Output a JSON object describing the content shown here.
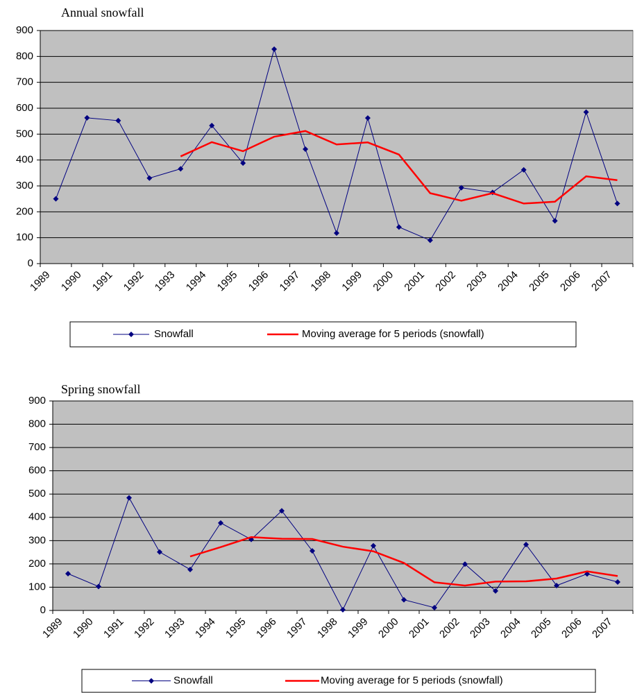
{
  "chart_data": [
    {
      "type": "line",
      "title": "Annual snowfall",
      "categories": [
        "1989",
        "1990",
        "1991",
        "1992",
        "1993",
        "1994",
        "1995",
        "1996",
        "1997",
        "1998",
        "1999",
        "2000",
        "2001",
        "2002",
        "2003",
        "2004",
        "2005",
        "2006",
        "2007"
      ],
      "series": [
        {
          "name": "Snowfall",
          "color": "#000080",
          "marker": "diamond",
          "values": [
            250,
            563,
            552,
            330,
            366,
            533,
            388,
            828,
            442,
            118,
            562,
            141,
            90,
            293,
            275,
            362,
            165,
            585,
            232
          ]
        },
        {
          "name": "Moving average for 5 periods (snowfall)",
          "color": "#ff0000",
          "marker": "none",
          "values": [
            null,
            null,
            null,
            null,
            414,
            469,
            434,
            490,
            512,
            460,
            468,
            421,
            272,
            243,
            272,
            232,
            239,
            337,
            322
          ]
        }
      ],
      "ylim": [
        0,
        900
      ],
      "yticks": [
        0,
        100,
        200,
        300,
        400,
        500,
        600,
        700,
        800,
        900
      ],
      "grid": true,
      "legend": "bottom"
    },
    {
      "type": "line",
      "title": "Spring snowfall",
      "categories": [
        "1989",
        "1990",
        "1991",
        "1992",
        "1993",
        "1994",
        "1995",
        "1996",
        "1997",
        "1998",
        "1999",
        "2000",
        "2001",
        "2002",
        "2003",
        "2004",
        "2005",
        "2006",
        "2007"
      ],
      "series": [
        {
          "name": "Snowfall",
          "color": "#000080",
          "marker": "diamond",
          "values": [
            158,
            103,
            484,
            251,
            176,
            376,
            305,
            428,
            256,
            3,
            278,
            46,
            12,
            199,
            84,
            283,
            107,
            157,
            122
          ]
        },
        {
          "name": "Moving average for 5 periods (snowfall)",
          "color": "#ff0000",
          "marker": "none",
          "values": [
            null,
            null,
            null,
            null,
            232,
            272,
            315,
            308,
            307,
            274,
            254,
            204,
            121,
            107,
            124,
            125,
            137,
            168,
            148
          ]
        }
      ],
      "ylim": [
        0,
        900
      ],
      "yticks": [
        0,
        100,
        200,
        300,
        400,
        500,
        600,
        700,
        800,
        900
      ],
      "grid": true,
      "legend": "bottom"
    }
  ]
}
